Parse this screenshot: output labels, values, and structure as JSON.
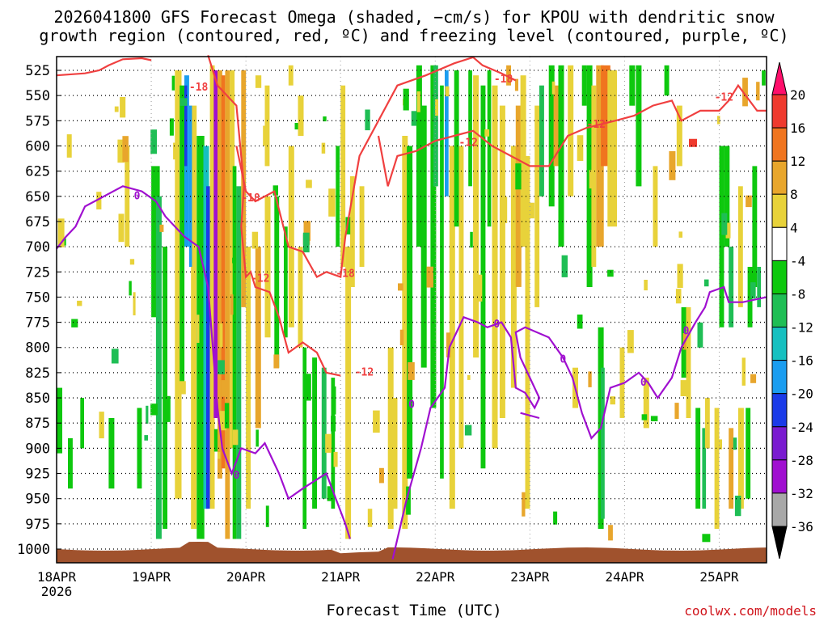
{
  "title_line1": "2026041800 GFS Forecast Omega (shaded, −cm/s) for KPOU with dendritic snow",
  "title_line2": "growth region (contoured, red, ºC) and freezing level (contoured, purple, ºC)",
  "credit": "coolwx.com/models",
  "chart_data": {
    "type": "heatmap",
    "title": "2026041800 GFS Forecast Omega (shaded, −cm/s) for KPOU with dendritic snow growth region (contoured, red, ºC) and freezing level (contoured, purple, ºC)",
    "xlabel": "Forecast Time (UTC)",
    "ylabel": "",
    "x_ticks": [
      "18APR",
      "19APR",
      "20APR",
      "21APR",
      "22APR",
      "23APR",
      "24APR",
      "25APR"
    ],
    "x_year": "2026",
    "x_range_days": [
      0,
      7.5
    ],
    "y_ticks": [
      525,
      550,
      575,
      600,
      625,
      650,
      675,
      700,
      725,
      750,
      775,
      800,
      825,
      850,
      875,
      900,
      925,
      950,
      975,
      1000
    ],
    "y_range_hpa": [
      510,
      1015
    ],
    "colorbar_levels": [
      20,
      16,
      12,
      8,
      4,
      -4,
      -8,
      -12,
      -16,
      -20,
      -24,
      -28,
      -32,
      -36
    ],
    "colorbar_colors": [
      "#ff0f6b",
      "#ef3a2e",
      "#f0751f",
      "#e8a62c",
      "#e8d23a",
      "#ffffff",
      "#0ec80e",
      "#1fbe55",
      "#16c0c0",
      "#1b9df0",
      "#1b3be8",
      "#7a1bd0",
      "#a00fd0",
      "#a8a8a8",
      "#000000"
    ],
    "contour_labels": [
      "-18",
      "-12",
      "0"
    ],
    "freezing_level_color": "#a010d0",
    "dgz_color": "#f04040",
    "terrain_color": "#a0522d"
  }
}
